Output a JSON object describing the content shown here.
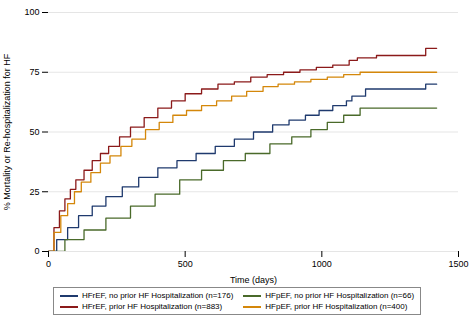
{
  "chart_data": {
    "type": "step",
    "xlabel": "Time (days)",
    "ylabel": "% Mortality or Re-hospitalization for HF",
    "xlim": [
      0,
      1500
    ],
    "ylim": [
      0,
      100
    ],
    "xticks": [
      0,
      500,
      1000,
      1500
    ],
    "yticks": [
      0,
      25,
      50,
      75,
      100
    ],
    "grid": "y",
    "legend": "bottom",
    "series": [
      {
        "name": "HFrEF, no prior HF Hospitalization (n=176)",
        "color": "#1F3A6E",
        "x": [
          0,
          30,
          70,
          110,
          160,
          210,
          270,
          330,
          400,
          470,
          540,
          610,
          680,
          750,
          820,
          880,
          940,
          990,
          1040,
          1090,
          1110,
          1160,
          1380,
          1420
        ],
        "values": [
          0,
          5,
          10,
          15,
          19,
          23,
          27,
          31,
          35,
          38,
          41,
          44,
          47,
          50,
          53,
          55,
          57,
          59,
          61,
          63,
          65,
          68,
          70,
          70
        ]
      },
      {
        "name": "HFrEF, prior HF Hospitalization (n=883)",
        "color": "#8B1A1A",
        "x": [
          0,
          20,
          40,
          60,
          80,
          100,
          130,
          160,
          190,
          220,
          260,
          300,
          350,
          400,
          450,
          500,
          560,
          620,
          680,
          740,
          800,
          860,
          920,
          980,
          1040,
          1100,
          1130,
          1160,
          1200,
          1280,
          1380,
          1420
        ],
        "values": [
          0,
          10,
          17,
          22,
          26,
          30,
          34,
          38,
          41,
          44,
          48,
          52,
          56,
          60,
          63,
          66,
          68,
          70,
          71,
          73,
          74,
          75,
          76,
          77,
          78,
          80,
          81,
          81,
          82,
          82,
          85,
          85
        ]
      },
      {
        "name": "HFpEF, no prior HF Hospitalization (n=66)",
        "color": "#4A6A2A",
        "x": [
          0,
          60,
          130,
          210,
          300,
          390,
          480,
          560,
          640,
          720,
          810,
          890,
          960,
          1020,
          1080,
          1140,
          1350,
          1420
        ],
        "values": [
          0,
          5,
          9,
          14,
          19,
          24,
          30,
          34,
          38,
          41,
          45,
          48,
          51,
          54,
          57,
          60,
          60,
          60
        ]
      },
      {
        "name": "HFpEF, prior HF Hospitalization (n=400)",
        "color": "#D4870A",
        "x": [
          0,
          20,
          45,
          70,
          95,
          120,
          155,
          190,
          225,
          265,
          305,
          355,
          405,
          455,
          505,
          560,
          615,
          670,
          725,
          785,
          840,
          900,
          960,
          1020,
          1080,
          1140,
          1350,
          1420
        ],
        "values": [
          0,
          8,
          15,
          20,
          25,
          29,
          33,
          37,
          40,
          44,
          47,
          51,
          54,
          57,
          59,
          61,
          63,
          65,
          67,
          69,
          70,
          71,
          72,
          73,
          74,
          75,
          75,
          75
        ]
      }
    ]
  }
}
